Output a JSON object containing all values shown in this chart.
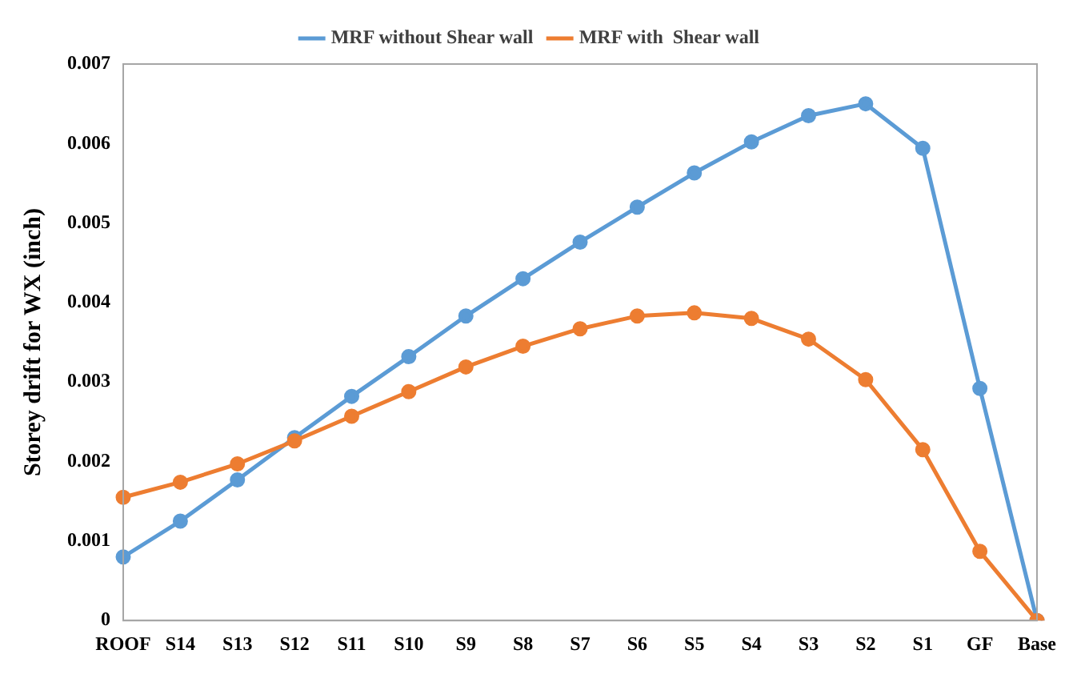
{
  "chart_data": {
    "type": "line",
    "ylabel": "Storey drift for WX (inch)",
    "categories": [
      "ROOF",
      "S14",
      "S13",
      "S12",
      "S11",
      "S10",
      "S9",
      "S8",
      "S7",
      "S6",
      "S5",
      "S4",
      "S3",
      "S2",
      "S1",
      "GF",
      "Base"
    ],
    "series": [
      {
        "name": "MRF without Shear wall",
        "color": "#5b9bd5",
        "values": [
          0.0008,
          0.00125,
          0.00177,
          0.0023,
          0.00282,
          0.00332,
          0.00383,
          0.0043,
          0.00476,
          0.0052,
          0.00563,
          0.00602,
          0.00635,
          0.0065,
          0.00594,
          0.00292,
          0
        ]
      },
      {
        "name": "MRF with  Shear wall",
        "color": "#ed7d31",
        "values": [
          0.00155,
          0.00174,
          0.00197,
          0.00226,
          0.00257,
          0.00288,
          0.00319,
          0.00345,
          0.00367,
          0.00383,
          0.00387,
          0.0038,
          0.00354,
          0.00303,
          0.00215,
          0.00087,
          0
        ]
      }
    ],
    "ylim": [
      0,
      0.007
    ],
    "yticks": [
      0,
      0.001,
      0.002,
      0.003,
      0.004,
      0.005,
      0.006,
      0.007
    ],
    "grid": false,
    "legend": "top",
    "marker": "circle",
    "line_style": "solid"
  }
}
